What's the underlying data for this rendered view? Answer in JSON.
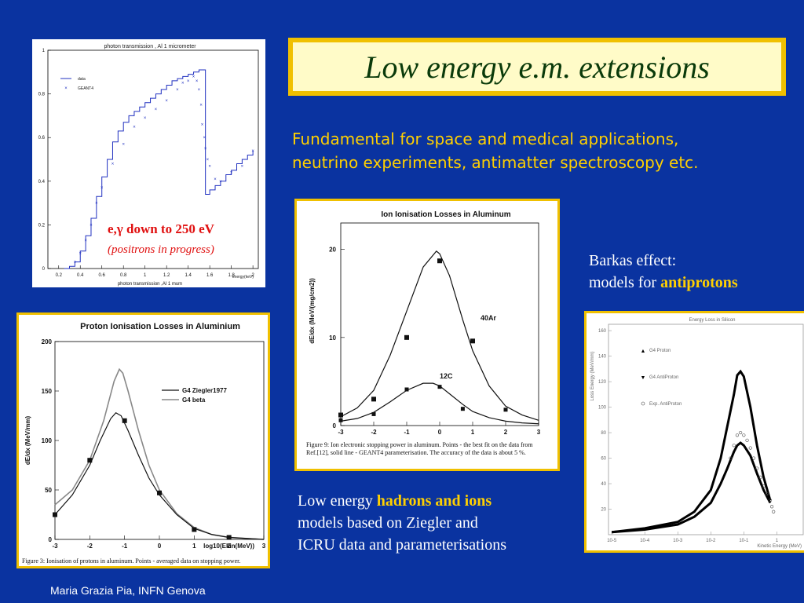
{
  "title": "Low energy e.m. extensions",
  "subtitle": {
    "line1": "Fundamental for space and medical applications,",
    "line2": "neutrino experiments, antimatter spectroscopy etc."
  },
  "barkas": {
    "line1": "Barkas effect:",
    "line2_prefix": "models for ",
    "line2_bold": "antiprotons"
  },
  "hadrons": {
    "line1_prefix": "Low energy ",
    "line1_bold": "hadrons and ions",
    "line2": "models based on Ziegler and",
    "line3": "ICRU data and parameterisations"
  },
  "footer": "Maria Grazia Pia, INFN Genova",
  "photon_overlay": {
    "line1": "e,γ down to 250 eV",
    "line2": "(positrons in progress)"
  },
  "chart_data": [
    {
      "type": "line",
      "title": "photon transmission , Al 1 micrometer",
      "xlabel": "photon transmission ,Al 1 mum",
      "xunit": "energy(keV)",
      "xticks": [
        "0.2",
        "0.4",
        "0.6",
        "0.8",
        "1",
        "1.2",
        "1.4",
        "1.6",
        "1.8",
        "2"
      ],
      "yticks": [
        "0",
        "0.2",
        "0.4",
        "0.6",
        "0.8",
        "1"
      ],
      "xlim": [
        0.1,
        2.05
      ],
      "ylim": [
        0,
        1
      ],
      "legend": [
        "data",
        "GEANT4"
      ],
      "series": [
        {
          "name": "data",
          "x": [
            0.25,
            0.3,
            0.35,
            0.4,
            0.45,
            0.5,
            0.55,
            0.6,
            0.65,
            0.7,
            0.75,
            0.8,
            0.85,
            0.9,
            0.95,
            1.0,
            1.05,
            1.1,
            1.15,
            1.2,
            1.25,
            1.3,
            1.35,
            1.4,
            1.45,
            1.5,
            1.55,
            1.56,
            1.6,
            1.65,
            1.7,
            1.75,
            1.8,
            1.85,
            1.9,
            1.95,
            2.0
          ],
          "y": [
            0,
            0.01,
            0.03,
            0.08,
            0.15,
            0.23,
            0.33,
            0.42,
            0.5,
            0.58,
            0.63,
            0.67,
            0.7,
            0.72,
            0.74,
            0.76,
            0.78,
            0.8,
            0.82,
            0.84,
            0.86,
            0.87,
            0.88,
            0.89,
            0.9,
            0.91,
            0.91,
            0.34,
            0.36,
            0.38,
            0.4,
            0.43,
            0.45,
            0.48,
            0.5,
            0.52,
            0.54
          ]
        },
        {
          "name": "GEANT4",
          "x": [
            0.35,
            0.4,
            0.45,
            0.5,
            0.55,
            0.6,
            0.7,
            0.8,
            0.9,
            1.0,
            1.1,
            1.2,
            1.3,
            1.35,
            1.4,
            1.45,
            1.48,
            1.5,
            1.52,
            1.53,
            1.55,
            1.56,
            1.58,
            1.6,
            1.65,
            1.7,
            1.8,
            1.9,
            2.0
          ],
          "y": [
            0.03,
            0.07,
            0.13,
            0.2,
            0.3,
            0.37,
            0.48,
            0.57,
            0.65,
            0.69,
            0.73,
            0.77,
            0.82,
            0.85,
            0.86,
            0.88,
            0.86,
            0.82,
            0.75,
            0.66,
            0.6,
            0.55,
            0.5,
            0.47,
            0.41,
            0.4,
            0.44,
            0.47,
            0.54
          ]
        }
      ]
    },
    {
      "type": "line",
      "title": "Proton Ionisation Losses in Aluminium",
      "xlabel": "log10(Ekin(MeV))",
      "ylabel": "dE/dx (MeV/mm)",
      "xticks": [
        "-3",
        "-2",
        "-1",
        "0",
        "1",
        "2",
        "3"
      ],
      "yticks": [
        "0",
        "50",
        "100",
        "150",
        "200"
      ],
      "xlim": [
        -3,
        3
      ],
      "ylim": [
        0,
        200
      ],
      "legend": [
        "G4 Ziegler1977",
        "G4 beta"
      ],
      "caption": "Figure 3: Ionisation of protons in aluminum. Points - averaged data on stopping power.",
      "series": [
        {
          "name": "G4 Ziegler1977",
          "x": [
            -3,
            -2.5,
            -2,
            -1.7,
            -1.4,
            -1.25,
            -1.1,
            -0.9,
            -0.6,
            -0.3,
            0,
            0.5,
            1,
            1.5,
            2,
            2.5,
            3
          ],
          "y": [
            25,
            45,
            75,
            100,
            122,
            128,
            125,
            110,
            85,
            62,
            45,
            25,
            11,
            5,
            2,
            1,
            0
          ]
        },
        {
          "name": "G4 beta",
          "x": [
            -3,
            -2.5,
            -2,
            -1.6,
            -1.3,
            -1.15,
            -1.05,
            -0.9,
            -0.6,
            -0.3,
            0,
            0.5,
            1,
            1.5,
            2,
            2.5,
            3
          ],
          "y": [
            35,
            50,
            80,
            120,
            160,
            172,
            168,
            150,
            110,
            75,
            50,
            26,
            12,
            5,
            2,
            1,
            0
          ]
        },
        {
          "name": "data",
          "x": [
            -3,
            -2,
            -1,
            0,
            1,
            2
          ],
          "y": [
            25,
            80,
            120,
            47,
            10,
            2
          ]
        }
      ]
    },
    {
      "type": "line",
      "title": "Ion Ionisation Losses in Aluminum",
      "xlabel": "log10(Ekin/Mi(MeV/amu))",
      "ylabel": "dE/dx (MeV/(mg/cm2))",
      "xticks": [
        "-3",
        "-2",
        "-1",
        "0",
        "1",
        "2",
        "3"
      ],
      "yticks": [
        "0",
        "10",
        "20"
      ],
      "xlim": [
        -3,
        3
      ],
      "ylim": [
        0,
        23
      ],
      "annotations": [
        "40Ar",
        "12C"
      ],
      "caption": "Figure 9: Ion electronic stopping power in aluminum. Points - the best fit on the data from Ref.[12], solid line - GEANT4 parameterisation. The accuracy of the data is about 5 %.",
      "series": [
        {
          "name": "40Ar",
          "x": [
            -3,
            -2.5,
            -2,
            -1.5,
            -1,
            -0.5,
            -0.1,
            0,
            0.3,
            0.7,
            1,
            1.5,
            2,
            2.5,
            3
          ],
          "y": [
            1,
            2,
            4,
            8,
            13,
            18,
            19.8,
            19.5,
            17,
            12,
            8.5,
            4.5,
            2.2,
            1.2,
            0.6
          ]
        },
        {
          "name": "12C",
          "x": [
            -3,
            -2.5,
            -2,
            -1.5,
            -1,
            -0.5,
            -0.2,
            0,
            0.3,
            0.7,
            1,
            1.5,
            2,
            2.5,
            3
          ],
          "y": [
            0.5,
            0.8,
            1.5,
            2.7,
            4,
            4.8,
            4.8,
            4.5,
            3.6,
            2.4,
            1.6,
            0.9,
            0.5,
            0.3,
            0.2
          ]
        },
        {
          "name": "Ar data",
          "x": [
            -3,
            -2,
            -1,
            0,
            1
          ],
          "y": [
            1.2,
            3,
            10,
            18.7,
            9.6
          ]
        },
        {
          "name": "C data",
          "x": [
            -3,
            -2,
            -1,
            0,
            0.7,
            2
          ],
          "y": [
            0.6,
            1.3,
            4.1,
            4.4,
            1.9,
            1.8
          ]
        }
      ]
    },
    {
      "type": "scatter",
      "title": "Energy Loss in Silicon",
      "xlabel": "Kinetic Energy (MeV)",
      "ylabel": "Loss Energy (MeV/mm)",
      "xticks": [
        "10-5",
        "10-4",
        "10-3",
        "10-2",
        "10-1",
        "1"
      ],
      "yticks": [
        "20",
        "40",
        "60",
        "80",
        "100",
        "120",
        "140",
        "160"
      ],
      "xlim": [
        -5.1,
        0.8
      ],
      "ylim": [
        0,
        165
      ],
      "legend": [
        "G4 Proton",
        "G4 AntiProton",
        "Exp. AntiProton"
      ],
      "series": [
        {
          "name": "G4 Proton",
          "x": [
            -5,
            -4,
            -3,
            -2.5,
            -2,
            -1.7,
            -1.5,
            -1.3,
            -1.2,
            -1.1,
            -1,
            -0.8,
            -0.6,
            -0.4,
            -0.2
          ],
          "y": [
            2,
            5,
            10,
            18,
            35,
            60,
            85,
            110,
            125,
            128,
            124,
            100,
            70,
            45,
            27
          ]
        },
        {
          "name": "G4 AntiProton",
          "x": [
            -5,
            -4,
            -3,
            -2.5,
            -2,
            -1.7,
            -1.5,
            -1.3,
            -1.2,
            -1.1,
            -1,
            -0.8,
            -0.6,
            -0.4,
            -0.2
          ],
          "y": [
            2,
            4,
            8,
            14,
            25,
            40,
            52,
            65,
            70,
            72,
            70,
            62,
            48,
            35,
            25
          ]
        },
        {
          "name": "Exp. AntiProton",
          "x": [
            -1.4,
            -1.3,
            -1.2,
            -1.1,
            -1,
            -0.9,
            -0.8,
            -0.7,
            -0.6,
            -0.5,
            -0.4,
            -0.3,
            -0.2,
            -0.15,
            -0.1
          ],
          "y": [
            60,
            70,
            78,
            80,
            78,
            74,
            68,
            60,
            52,
            45,
            38,
            32,
            27,
            22,
            18
          ]
        }
      ]
    }
  ]
}
